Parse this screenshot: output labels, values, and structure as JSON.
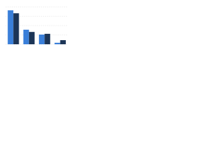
{
  "chart_data": {
    "type": "bar",
    "categories": [
      null,
      null,
      null,
      null
    ],
    "series": [
      {
        "color": "#3a7fd9",
        "values": [
          91,
          39,
          26,
          4
        ]
      },
      {
        "color": "#1c3557",
        "values": [
          83,
          33,
          28,
          11
        ]
      }
    ],
    "ylim": [
      0,
      100
    ],
    "yticks": [
      0,
      25,
      50,
      75,
      100
    ],
    "grid": true
  }
}
